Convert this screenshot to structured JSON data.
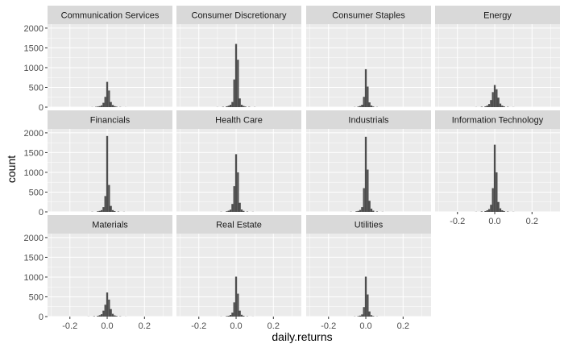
{
  "chart_data": {
    "type": "bar",
    "subtype": "faceted-histogram",
    "xlabel": "daily.returns",
    "ylabel": "count",
    "xlim": [
      -0.32,
      0.35
    ],
    "ylim": [
      0,
      2100
    ],
    "x_ticks": [
      -0.2,
      0.0,
      0.2
    ],
    "y_ticks": [
      0,
      500,
      1000,
      1500,
      2000
    ],
    "grid": true,
    "bin_width": 0.01,
    "colors": {
      "bar": "#4d4d4d",
      "panel_background": "#ebebeb",
      "strip_background": "#d9d9d9",
      "grid": "#ffffff"
    },
    "facets": [
      {
        "name": "Communication Services",
        "bins": [
          {
            "x": -0.08,
            "count": 3
          },
          {
            "x": -0.06,
            "count": 8
          },
          {
            "x": -0.05,
            "count": 15
          },
          {
            "x": -0.04,
            "count": 25
          },
          {
            "x": -0.03,
            "count": 45
          },
          {
            "x": -0.02,
            "count": 110
          },
          {
            "x": -0.01,
            "count": 260
          },
          {
            "x": 0.0,
            "count": 640
          },
          {
            "x": 0.01,
            "count": 420
          },
          {
            "x": 0.02,
            "count": 130
          },
          {
            "x": 0.03,
            "count": 55
          },
          {
            "x": 0.04,
            "count": 25
          },
          {
            "x": 0.05,
            "count": 12
          },
          {
            "x": 0.07,
            "count": 5
          },
          {
            "x": 0.1,
            "count": 2
          }
        ]
      },
      {
        "name": "Consumer Discretionary",
        "bins": [
          {
            "x": -0.1,
            "count": 3
          },
          {
            "x": -0.07,
            "count": 8
          },
          {
            "x": -0.05,
            "count": 20
          },
          {
            "x": -0.04,
            "count": 35
          },
          {
            "x": -0.03,
            "count": 60
          },
          {
            "x": -0.02,
            "count": 130
          },
          {
            "x": -0.01,
            "count": 700
          },
          {
            "x": 0.0,
            "count": 1600
          },
          {
            "x": 0.01,
            "count": 1200
          },
          {
            "x": 0.02,
            "count": 220
          },
          {
            "x": 0.03,
            "count": 60
          },
          {
            "x": 0.04,
            "count": 30
          },
          {
            "x": 0.05,
            "count": 15
          },
          {
            "x": 0.07,
            "count": 8
          },
          {
            "x": 0.1,
            "count": 4
          }
        ]
      },
      {
        "name": "Consumer Staples",
        "bins": [
          {
            "x": -0.06,
            "count": 4
          },
          {
            "x": -0.04,
            "count": 15
          },
          {
            "x": -0.03,
            "count": 30
          },
          {
            "x": -0.02,
            "count": 60
          },
          {
            "x": -0.01,
            "count": 260
          },
          {
            "x": 0.0,
            "count": 960
          },
          {
            "x": 0.01,
            "count": 520
          },
          {
            "x": 0.02,
            "count": 120
          },
          {
            "x": 0.03,
            "count": 40
          },
          {
            "x": 0.04,
            "count": 15
          },
          {
            "x": 0.06,
            "count": 5
          }
        ]
      },
      {
        "name": "Energy",
        "bins": [
          {
            "x": -0.1,
            "count": 3
          },
          {
            "x": -0.07,
            "count": 10
          },
          {
            "x": -0.05,
            "count": 20
          },
          {
            "x": -0.04,
            "count": 40
          },
          {
            "x": -0.03,
            "count": 80
          },
          {
            "x": -0.02,
            "count": 180
          },
          {
            "x": -0.01,
            "count": 380
          },
          {
            "x": 0.0,
            "count": 560
          },
          {
            "x": 0.01,
            "count": 450
          },
          {
            "x": 0.02,
            "count": 240
          },
          {
            "x": 0.03,
            "count": 90
          },
          {
            "x": 0.04,
            "count": 40
          },
          {
            "x": 0.05,
            "count": 20
          },
          {
            "x": 0.07,
            "count": 8
          },
          {
            "x": 0.1,
            "count": 3
          }
        ]
      },
      {
        "name": "Financials",
        "bins": [
          {
            "x": -0.08,
            "count": 4
          },
          {
            "x": -0.05,
            "count": 15
          },
          {
            "x": -0.04,
            "count": 25
          },
          {
            "x": -0.03,
            "count": 45
          },
          {
            "x": -0.02,
            "count": 120
          },
          {
            "x": -0.01,
            "count": 400
          },
          {
            "x": 0.0,
            "count": 1920
          },
          {
            "x": 0.01,
            "count": 680
          },
          {
            "x": 0.02,
            "count": 150
          },
          {
            "x": 0.03,
            "count": 45
          },
          {
            "x": 0.04,
            "count": 20
          },
          {
            "x": 0.06,
            "count": 8
          },
          {
            "x": 0.09,
            "count": 3
          }
        ]
      },
      {
        "name": "Health Care",
        "bins": [
          {
            "x": -0.08,
            "count": 4
          },
          {
            "x": -0.05,
            "count": 15
          },
          {
            "x": -0.04,
            "count": 30
          },
          {
            "x": -0.03,
            "count": 55
          },
          {
            "x": -0.02,
            "count": 200
          },
          {
            "x": -0.01,
            "count": 650
          },
          {
            "x": 0.0,
            "count": 1460
          },
          {
            "x": 0.01,
            "count": 1000
          },
          {
            "x": 0.02,
            "count": 230
          },
          {
            "x": 0.03,
            "count": 60
          },
          {
            "x": 0.04,
            "count": 25
          },
          {
            "x": 0.06,
            "count": 8
          },
          {
            "x": 0.09,
            "count": 3
          }
        ]
      },
      {
        "name": "Industrials",
        "bins": [
          {
            "x": -0.08,
            "count": 4
          },
          {
            "x": -0.05,
            "count": 15
          },
          {
            "x": -0.04,
            "count": 25
          },
          {
            "x": -0.03,
            "count": 50
          },
          {
            "x": -0.02,
            "count": 120
          },
          {
            "x": -0.01,
            "count": 600
          },
          {
            "x": 0.0,
            "count": 1900
          },
          {
            "x": 0.01,
            "count": 1070
          },
          {
            "x": 0.02,
            "count": 280
          },
          {
            "x": 0.03,
            "count": 80
          },
          {
            "x": 0.04,
            "count": 30
          },
          {
            "x": 0.06,
            "count": 10
          },
          {
            "x": 0.09,
            "count": 3
          }
        ]
      },
      {
        "name": "Information Technology",
        "bins": [
          {
            "x": -0.1,
            "count": 3
          },
          {
            "x": -0.07,
            "count": 10
          },
          {
            "x": -0.05,
            "count": 20
          },
          {
            "x": -0.04,
            "count": 40
          },
          {
            "x": -0.03,
            "count": 70
          },
          {
            "x": -0.02,
            "count": 180
          },
          {
            "x": -0.01,
            "count": 600
          },
          {
            "x": 0.0,
            "count": 1700
          },
          {
            "x": 0.01,
            "count": 1000
          },
          {
            "x": 0.02,
            "count": 250
          },
          {
            "x": 0.03,
            "count": 90
          },
          {
            "x": 0.04,
            "count": 40
          },
          {
            "x": 0.05,
            "count": 20
          },
          {
            "x": 0.07,
            "count": 8
          },
          {
            "x": 0.1,
            "count": 3
          }
        ]
      },
      {
        "name": "Materials",
        "bins": [
          {
            "x": -0.1,
            "count": 3
          },
          {
            "x": -0.07,
            "count": 8
          },
          {
            "x": -0.05,
            "count": 18
          },
          {
            "x": -0.04,
            "count": 35
          },
          {
            "x": -0.03,
            "count": 60
          },
          {
            "x": -0.02,
            "count": 150
          },
          {
            "x": -0.01,
            "count": 300
          },
          {
            "x": 0.0,
            "count": 610
          },
          {
            "x": 0.01,
            "count": 430
          },
          {
            "x": 0.02,
            "count": 190
          },
          {
            "x": 0.03,
            "count": 70
          },
          {
            "x": 0.04,
            "count": 30
          },
          {
            "x": 0.05,
            "count": 15
          },
          {
            "x": 0.07,
            "count": 6
          },
          {
            "x": 0.1,
            "count": 2
          }
        ]
      },
      {
        "name": "Real Estate",
        "bins": [
          {
            "x": -0.08,
            "count": 3
          },
          {
            "x": -0.05,
            "count": 12
          },
          {
            "x": -0.04,
            "count": 20
          },
          {
            "x": -0.03,
            "count": 40
          },
          {
            "x": -0.02,
            "count": 100
          },
          {
            "x": -0.01,
            "count": 360
          },
          {
            "x": 0.0,
            "count": 1010
          },
          {
            "x": 0.01,
            "count": 580
          },
          {
            "x": 0.02,
            "count": 150
          },
          {
            "x": 0.03,
            "count": 45
          },
          {
            "x": 0.04,
            "count": 18
          },
          {
            "x": 0.06,
            "count": 6
          },
          {
            "x": 0.09,
            "count": 2
          }
        ]
      },
      {
        "name": "Utilities",
        "bins": [
          {
            "x": -0.06,
            "count": 4
          },
          {
            "x": -0.04,
            "count": 12
          },
          {
            "x": -0.03,
            "count": 25
          },
          {
            "x": -0.02,
            "count": 55
          },
          {
            "x": -0.01,
            "count": 240
          },
          {
            "x": 0.0,
            "count": 1010
          },
          {
            "x": 0.01,
            "count": 560
          },
          {
            "x": 0.02,
            "count": 130
          },
          {
            "x": 0.03,
            "count": 35
          },
          {
            "x": 0.04,
            "count": 12
          },
          {
            "x": 0.06,
            "count": 4
          }
        ]
      }
    ]
  }
}
